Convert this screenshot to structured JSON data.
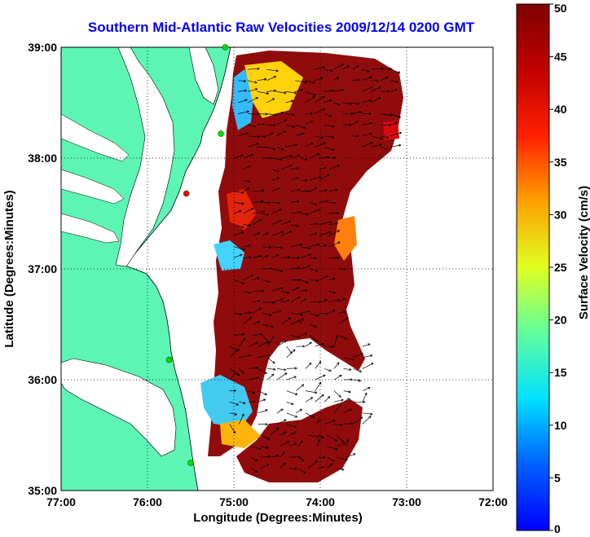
{
  "chart_data": {
    "type": "vector field map",
    "title": "Southern Mid-Atlantic Raw Velocities 2009/12/14 0200 GMT",
    "xlabel": "Longitude (Degrees:Minutes)",
    "ylabel": "Latitude (Degrees:Minutes)",
    "colorbar_label": "Surface Velocity (cm/s)",
    "x_ticks": [
      "77:00",
      "76:00",
      "75:00",
      "74:00",
      "73:00",
      "72:00"
    ],
    "y_ticks": [
      "39:00",
      "38:00",
      "37:00",
      "36:00",
      "35:00"
    ],
    "xlim": [
      -77,
      -72
    ],
    "ylim": [
      35,
      39
    ],
    "colorbar_ticks": [
      "50",
      "45",
      "40",
      "35",
      "30",
      "25",
      "20",
      "15",
      "10",
      "5",
      "0"
    ],
    "colorbar_range": [
      0,
      50
    ],
    "grid": "dotted",
    "colors": {
      "land": "#5cf5b4",
      "title": "#0000ff",
      "velocity_high": "#800000",
      "velocity_low": "#0000ff"
    },
    "stations": [
      {
        "lon": -75.1,
        "lat": 39.0,
        "color": "#00dd00"
      },
      {
        "lon": -75.15,
        "lat": 38.22,
        "color": "#00dd00"
      },
      {
        "lon": -75.55,
        "lat": 37.68,
        "color": "#ff0000"
      },
      {
        "lon": -75.75,
        "lat": 36.18,
        "color": "#00dd00"
      },
      {
        "lon": -75.5,
        "lat": 35.25,
        "color": "#00dd00"
      }
    ]
  }
}
